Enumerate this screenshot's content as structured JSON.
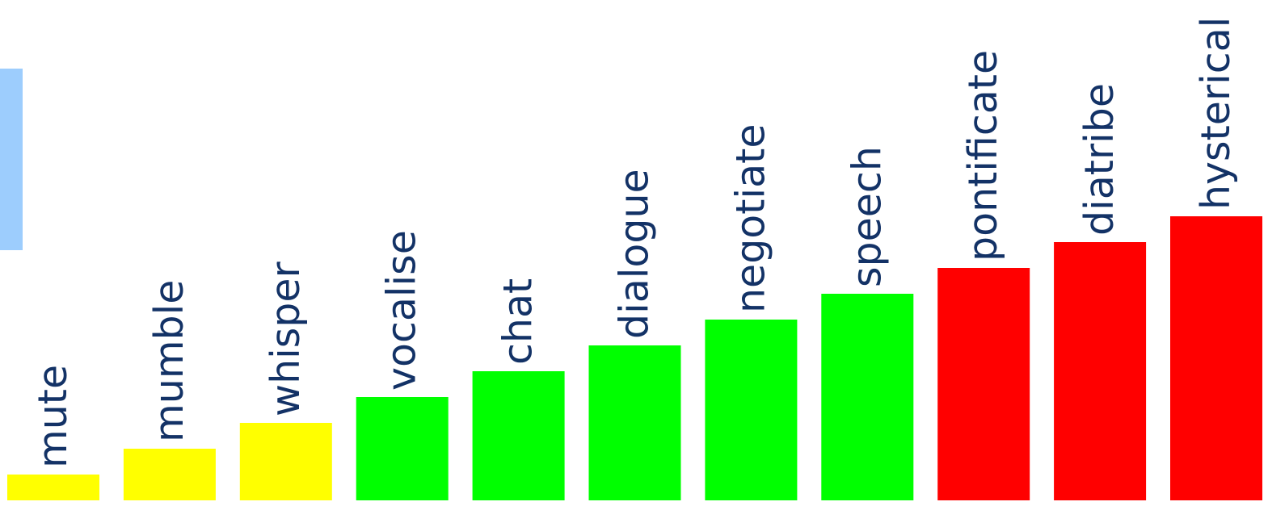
{
  "chart_data": {
    "type": "bar",
    "categories": [
      "mute",
      "mumble",
      "whisper",
      "vocalise",
      "chat",
      "dialogue",
      "negotiate",
      "speech",
      "pontificate",
      "diatribe",
      "hysterical"
    ],
    "values": [
      1,
      2,
      3,
      4,
      5,
      6,
      7,
      8,
      9,
      10,
      11
    ],
    "colors": [
      "#ffff00",
      "#ffff00",
      "#ffff00",
      "#00ff00",
      "#00ff00",
      "#00ff00",
      "#00ff00",
      "#00ff00",
      "#ff0000",
      "#ff0000",
      "#ff0000"
    ],
    "title": "",
    "xlabel": "",
    "ylabel": "",
    "ylim": [
      0,
      11
    ],
    "grid": false,
    "legend": "none",
    "label_color": "#133266",
    "accent_color": "#9dcdfd"
  }
}
